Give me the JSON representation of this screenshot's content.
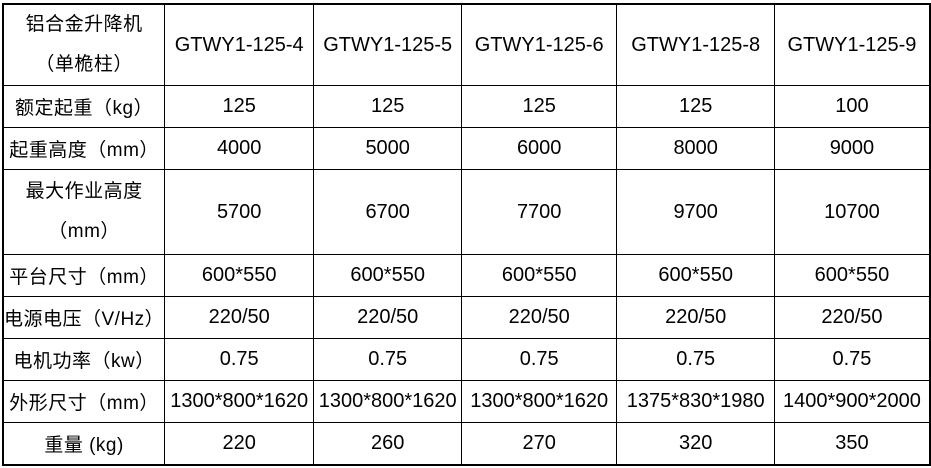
{
  "colors": {
    "background": "#ffffff",
    "text": "#000000",
    "border": "#000000"
  },
  "table": {
    "header": {
      "label_line1": "铝合金升降机",
      "label_line2": "（单桅柱）",
      "models": [
        "GTWY1-125-4",
        "GTWY1-125-5",
        "GTWY1-125-6",
        "GTWY1-125-8",
        "GTWY1-125-9"
      ]
    },
    "rows": [
      {
        "label": "额定起重（kg）",
        "values": [
          "125",
          "125",
          "125",
          "125",
          "100"
        ]
      },
      {
        "label": "起重高度（mm）",
        "values": [
          "4000",
          "5000",
          "6000",
          "8000",
          "9000"
        ]
      },
      {
        "label_line1": "最大作业高度",
        "label_line2": "（mm）",
        "values": [
          "5700",
          "6700",
          "7700",
          "9700",
          "10700"
        ]
      },
      {
        "label": "平台尺寸（mm）",
        "values": [
          "600*550",
          "600*550",
          "600*550",
          "600*550",
          "600*550"
        ]
      },
      {
        "label": "电源电压（V/Hz）",
        "values": [
          "220/50",
          "220/50",
          "220/50",
          "220/50",
          "220/50"
        ]
      },
      {
        "label": "电机功率（kw）",
        "values": [
          "0.75",
          "0.75",
          "0.75",
          "0.75",
          "0.75"
        ]
      },
      {
        "label": "外形尺寸（mm）",
        "values": [
          "1300*800*1620",
          "1300*800*1620",
          "1300*800*1620",
          "1375*830*1980",
          "1400*900*2000"
        ]
      },
      {
        "label": "重量 (kg)",
        "values": [
          "220",
          "260",
          "270",
          "320",
          "350"
        ]
      }
    ]
  }
}
